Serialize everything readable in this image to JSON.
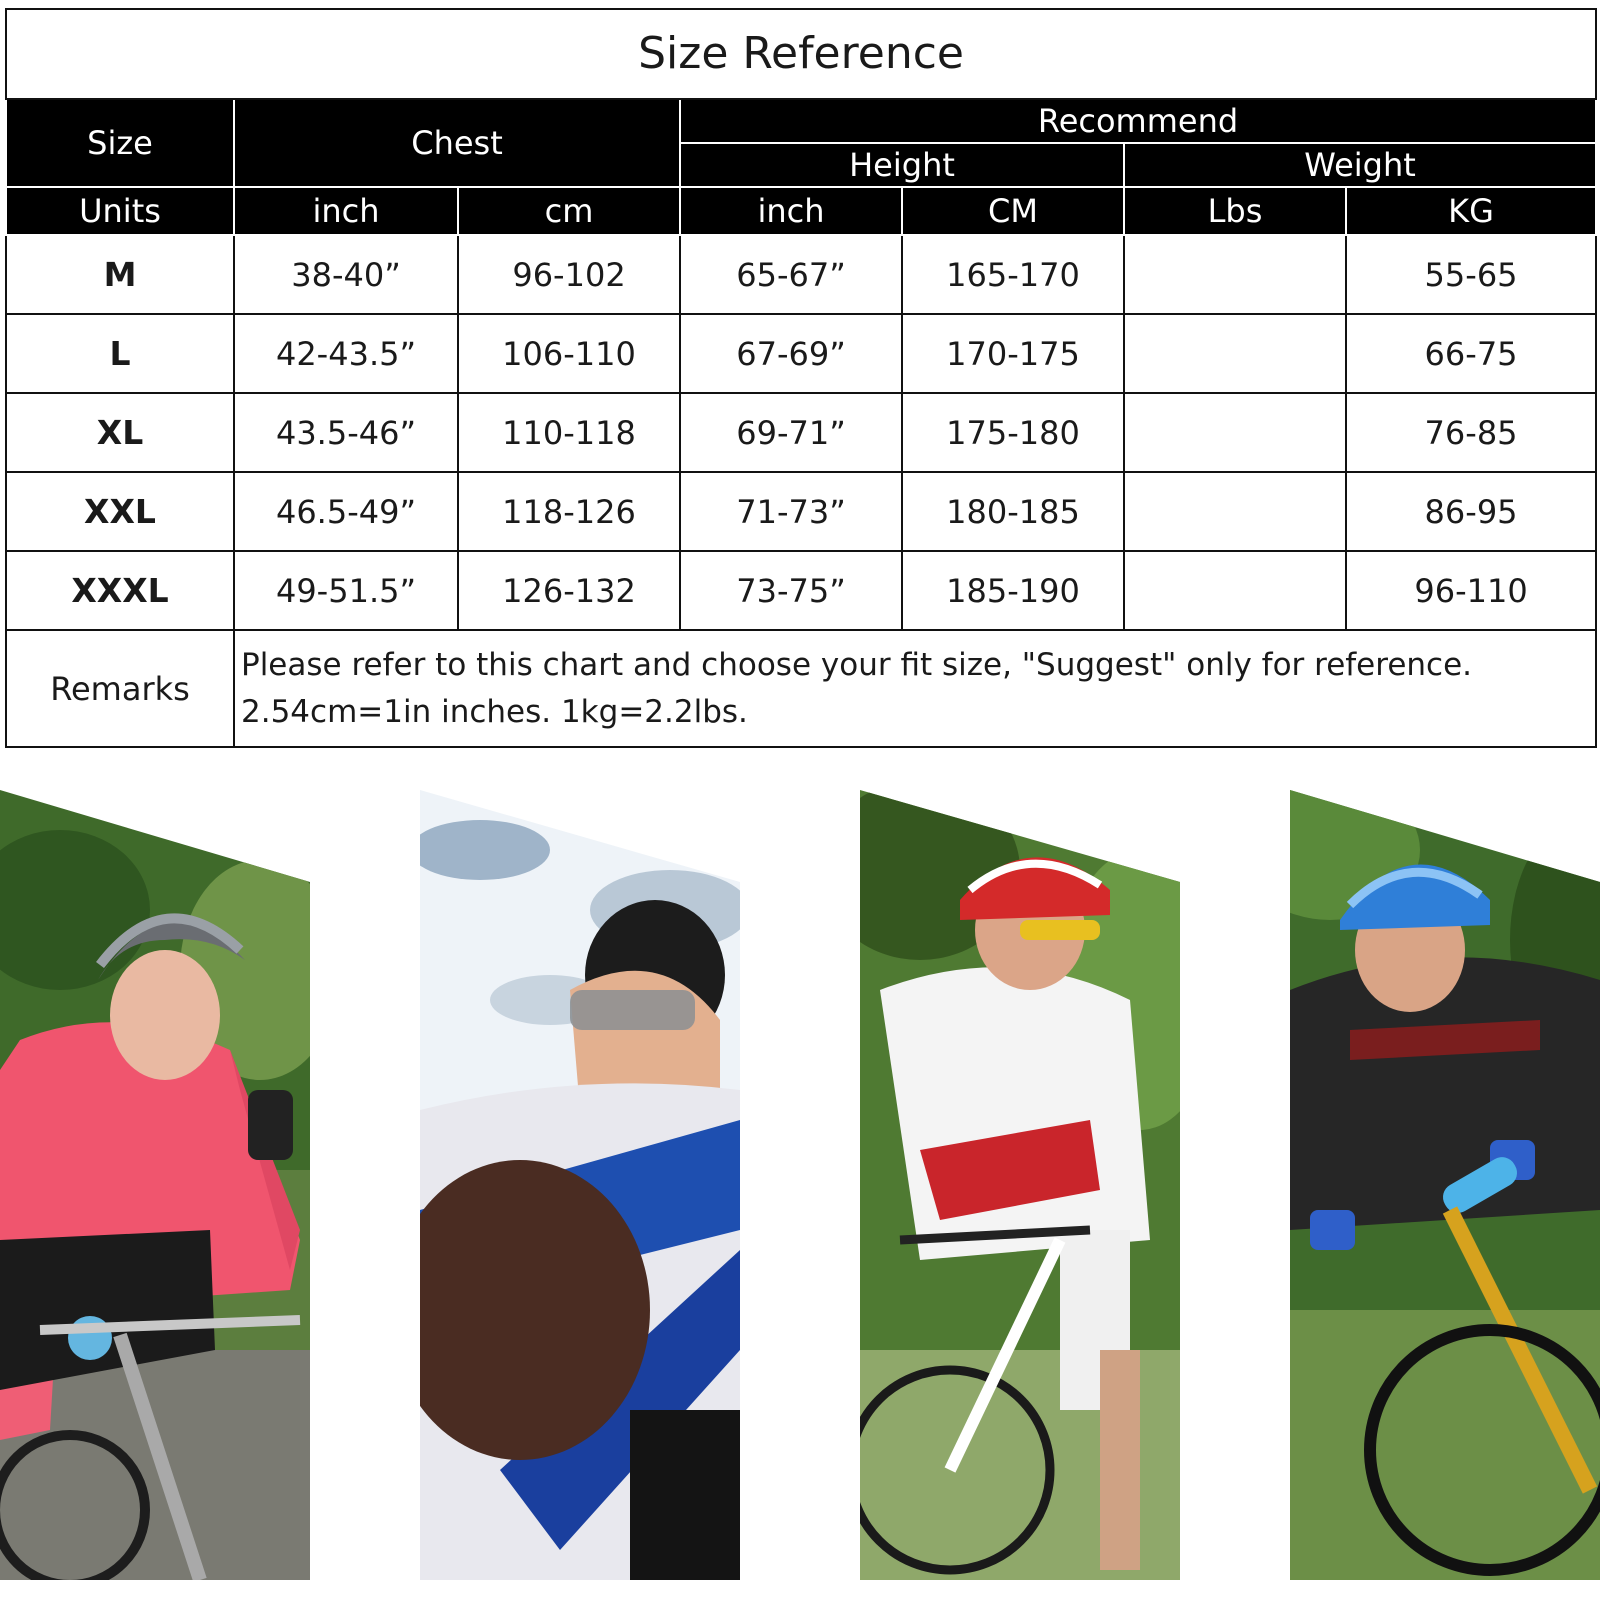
{
  "title": "Size Reference",
  "headers": {
    "size": "Size",
    "chest": "Chest",
    "recommend": "Recommend",
    "height": "Height",
    "weight": "Weight",
    "units_label": "Units",
    "units": [
      "inch",
      "cm",
      "inch",
      "CM",
      "Lbs",
      "KG"
    ]
  },
  "rows": [
    {
      "size": "M",
      "chest_in": "38-40”",
      "chest_cm": "96-102",
      "height_in": "65-67”",
      "height_cm": "165-170",
      "lbs": "",
      "kg": "55-65"
    },
    {
      "size": "L",
      "chest_in": "42-43.5”",
      "chest_cm": "106-110",
      "height_in": "67-69”",
      "height_cm": "170-175",
      "lbs": "",
      "kg": "66-75"
    },
    {
      "size": "XL",
      "chest_in": "43.5-46”",
      "chest_cm": "110-118",
      "height_in": "69-71”",
      "height_cm": "175-180",
      "lbs": "",
      "kg": "76-85"
    },
    {
      "size": "XXL",
      "chest_in": "46.5-49”",
      "chest_cm": "118-126",
      "height_in": "71-73”",
      "height_cm": "180-185",
      "lbs": "",
      "kg": "86-95"
    },
    {
      "size": "XXXL",
      "chest_in": "49-51.5”",
      "chest_cm": "126-132",
      "height_in": "73-75”",
      "height_cm": "185-190",
      "lbs": "",
      "kg": "96-110"
    }
  ],
  "remarks": {
    "label": "Remarks",
    "line1": "Please refer to this chart and choose your fit size, \"Suggest\" only for reference.",
    "line2": "2.54cm=1in inches. 1kg=2.2lbs."
  },
  "colors": {
    "header_bg": "#000000",
    "header_text": "#ffffff",
    "border": "#111111",
    "jacket_pink": "#f0556e",
    "helmet_blue": "#2f7fd8",
    "helmet_red": "#d42a2a",
    "forest_green": "#4f7a32"
  },
  "photos": [
    {
      "icon": "cyclist-pink-jacket-photo"
    },
    {
      "icon": "cyclist-sky-portrait-photo"
    },
    {
      "icon": "road-cyclist-red-helmet-photo"
    },
    {
      "icon": "mountain-biker-blue-helmet-photo"
    }
  ]
}
